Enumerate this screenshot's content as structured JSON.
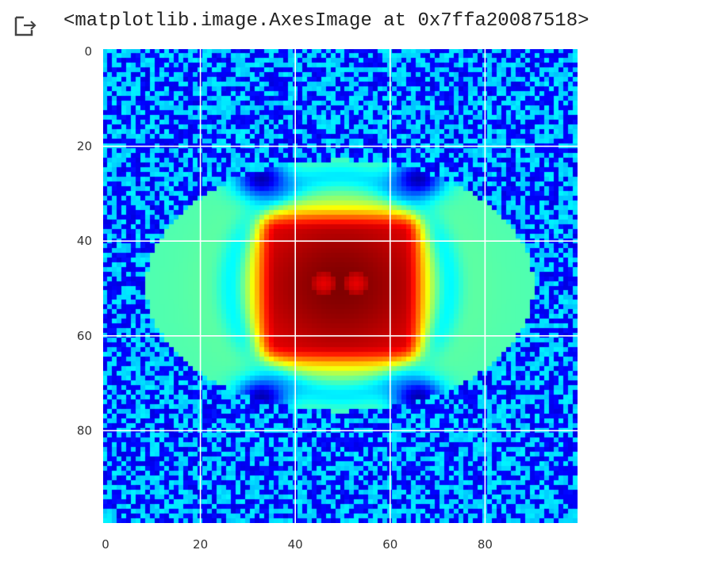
{
  "cell": {
    "output_icon": "output-arrow-icon",
    "output_text": "<matplotlib.image.AxesImage at 0x7ffa20087518>"
  },
  "chart_data": {
    "type": "heatmap",
    "title": "",
    "xlabel": "",
    "ylabel": "",
    "rows": 100,
    "cols": 100,
    "origin": "upper",
    "colormap": "jet",
    "value_range": [
      0,
      1
    ],
    "grid": true,
    "grid_color": "#ffffff",
    "x_ticks": [
      0,
      20,
      40,
      60,
      80
    ],
    "y_ticks": [
      0,
      20,
      40,
      60,
      80
    ],
    "x_tick_labels": [
      "0",
      "20",
      "40",
      "60",
      "80"
    ],
    "y_tick_labels": [
      "0",
      "20",
      "40",
      "60",
      "80"
    ],
    "description_of_values": "Background is noisy low values (0-0.35). A central rectangular peak near x 36-63, y 38-62 reaches ~1.0 with two darker local maxima near (46,49) and (53,49). Broad elliptical ring of medium values (0.4-0.7) spans x 10-90, y 25-75. Dark blue arcs (~0.05) at (33,27), (66,27), (33,73), (66,73).",
    "features": {
      "center": [
        49.5,
        49.5
      ],
      "peak_box": {
        "x": [
          36,
          63
        ],
        "y": [
          38,
          62
        ],
        "value": 1.0
      },
      "dark_spots": [
        [
          46,
          49
        ],
        [
          53,
          49
        ]
      ],
      "dark_spot_value": 0.9,
      "outer_ellipse_radii": [
        40,
        26
      ],
      "outer_value": 0.55,
      "arcs": [
        [
          33,
          27
        ],
        [
          66,
          27
        ],
        [
          33,
          73
        ],
        [
          66,
          73
        ]
      ],
      "arc_value": 0.05,
      "noise_levels": [
        0.12,
        0.34
      ]
    }
  }
}
